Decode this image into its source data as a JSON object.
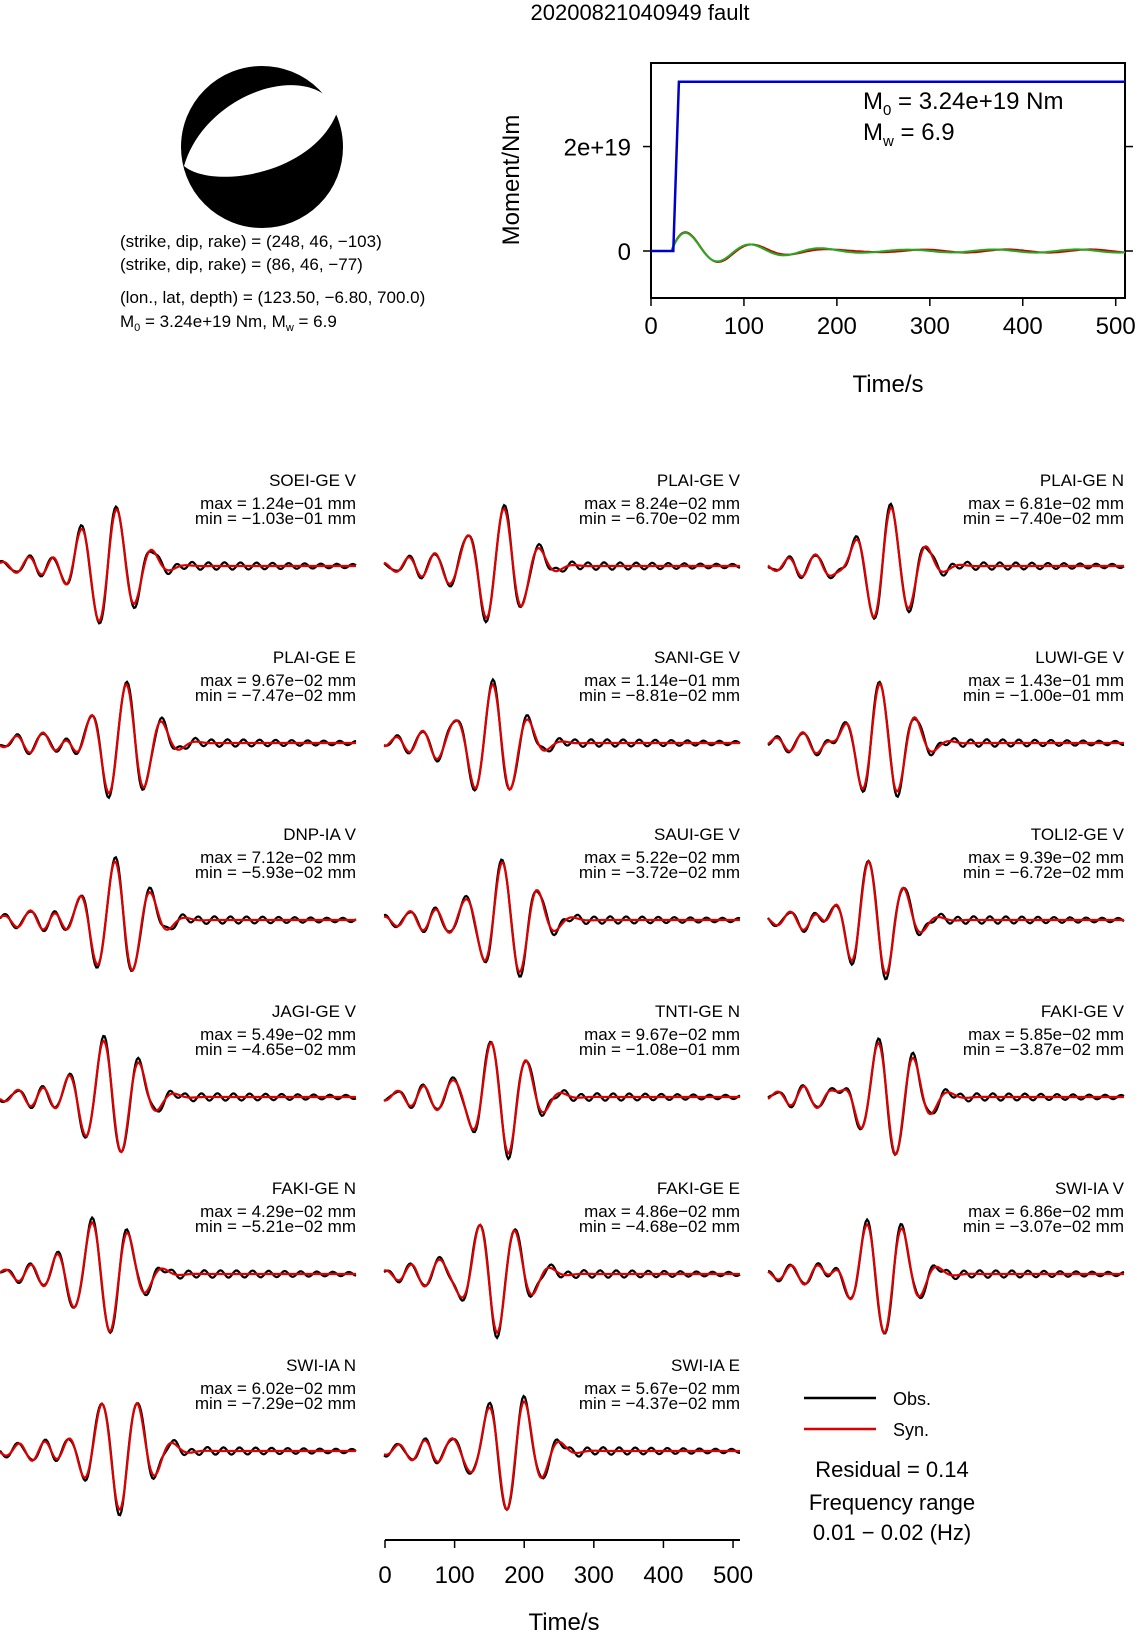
{
  "title": "20200821040949 fault",
  "beachball": {
    "lines": [
      "(strike, dip, rake) = (248, 46, −103)",
      "(strike, dip, rake) = (86, 46, −77)",
      "(lon., lat, depth) = (123.50, −6.80, 700.0)"
    ],
    "m0_line": {
      "m": "M",
      "sub0": "0",
      "a": " = 3.24e+19 Nm, M",
      "subw": "w",
      "b": " = 6.9"
    }
  },
  "stf": {
    "ylabel": "Moment/Nm",
    "xlabel": "Time/s",
    "yticks": [
      {
        "v": 0,
        "label": "0"
      },
      {
        "v": 2e+19,
        "label": "2e+19"
      }
    ],
    "xticks": [
      0,
      100,
      200,
      300,
      400,
      500
    ],
    "xlim": [
      0,
      510
    ],
    "ylim": [
      -9e+18,
      3.6e+19
    ],
    "m0": {
      "m": "M",
      "sub": "0",
      "rest": " = 3.24e+19 Nm"
    },
    "mw": {
      "m": "M",
      "sub": "w",
      "rest": " = 6.9"
    },
    "cumulative": {
      "color": "#0000cc",
      "points": [
        [
          0,
          0
        ],
        [
          24,
          0
        ],
        [
          30,
          3.24e+19
        ],
        [
          510,
          3.24e+19
        ]
      ]
    },
    "rate_obs": {
      "color": "#cc0000"
    },
    "rate_syn": {
      "color": "#22aa22"
    }
  },
  "legend": {
    "obs": "Obs.",
    "syn": "Syn."
  },
  "residual": "Residual = 0.14",
  "freq_title": "Frequency range",
  "freq_range": "0.01 − 0.02 (Hz)",
  "bottom_axis": {
    "xticks": [
      0,
      100,
      200,
      300,
      400,
      500
    ],
    "xlabel": "Time/s"
  },
  "colors": {
    "obs": "#000000",
    "syn": "#dd0000"
  },
  "chart_data": [
    {
      "type": "line",
      "title": "",
      "xlabel": "Time/s",
      "ylabel": "Moment/Nm",
      "xlim": [
        0,
        510
      ],
      "series": [
        {
          "name": "",
          "x": [
            0,
            24,
            30,
            510
          ],
          "values": [
            0,
            0,
            3.24e+19,
            3.24e+19
          ]
        }
      ]
    },
    {
      "type": "line",
      "xlabel": "Time/s",
      "xlim": [
        0,
        510
      ],
      "series": [
        {
          "name": "Obs."
        },
        {
          "name": "Syn."
        }
      ],
      "panels": [
        {
          "name": "SOEI-GE V",
          "max": "max = 1.24e−01 mm",
          "min": "min = −1.03e−01 mm",
          "seed": 1
        },
        {
          "name": "PLAI-GE V",
          "max": "max = 8.24e−02 mm",
          "min": "min = −6.70e−02 mm",
          "seed": 2
        },
        {
          "name": "PLAI-GE N",
          "max": "max = 6.81e−02 mm",
          "min": "min = −7.40e−02 mm",
          "seed": 3
        },
        {
          "name": "PLAI-GE E",
          "max": "max = 9.67e−02 mm",
          "min": "min = −7.47e−02 mm",
          "seed": 4
        },
        {
          "name": "SANI-GE V",
          "max": "max = 1.14e−01 mm",
          "min": "min = −8.81e−02 mm",
          "seed": 5
        },
        {
          "name": "LUWI-GE V",
          "max": "max = 1.43e−01 mm",
          "min": "min = −1.00e−01 mm",
          "seed": 6
        },
        {
          "name": "DNP-IA V",
          "max": "max = 7.12e−02 mm",
          "min": "min = −5.93e−02 mm",
          "seed": 7
        },
        {
          "name": "SAUI-GE V",
          "max": "max = 5.22e−02 mm",
          "min": "min = −3.72e−02 mm",
          "seed": 8
        },
        {
          "name": "TOLI2-GE V",
          "max": "max = 9.39e−02 mm",
          "min": "min = −6.72e−02 mm",
          "seed": 9
        },
        {
          "name": "JAGI-GE V",
          "max": "max = 5.49e−02 mm",
          "min": "min = −4.65e−02 mm",
          "seed": 10
        },
        {
          "name": "TNTI-GE N",
          "max": "max = 9.67e−02 mm",
          "min": "min = −1.08e−01 mm",
          "seed": 11
        },
        {
          "name": "FAKI-GE V",
          "max": "max = 5.85e−02 mm",
          "min": "min = −3.87e−02 mm",
          "seed": 12
        },
        {
          "name": "FAKI-GE N",
          "max": "max = 4.29e−02 mm",
          "min": "min = −5.21e−02 mm",
          "seed": 13
        },
        {
          "name": "FAKI-GE E",
          "max": "max = 4.86e−02 mm",
          "min": "min = −4.68e−02 mm",
          "seed": 14
        },
        {
          "name": "SWI-IA V",
          "max": "max = 6.86e−02 mm",
          "min": "min = −3.07e−02 mm",
          "seed": 15
        },
        {
          "name": "SWI-IA N",
          "max": "max = 6.02e−02 mm",
          "min": "min = −7.29e−02 mm",
          "seed": 16
        },
        {
          "name": "SWI-IA E",
          "max": "max = 5.67e−02 mm",
          "min": "min = −4.37e−02 mm",
          "seed": 17
        }
      ]
    }
  ]
}
